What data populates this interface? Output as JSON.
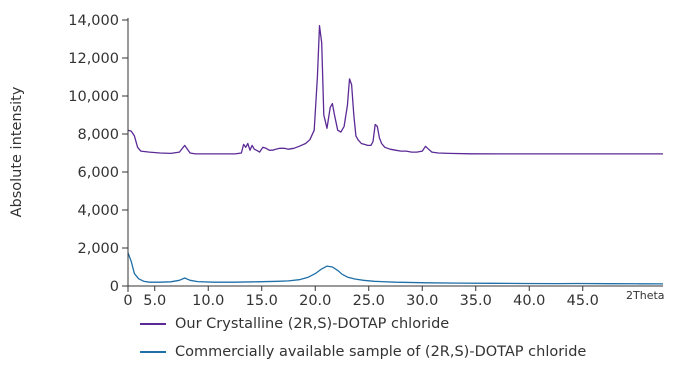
{
  "chart_data": {
    "type": "line",
    "ylabel": "Absolute intensity",
    "xunit": "2Theta",
    "xlim": [
      0,
      50
    ],
    "ylim": [
      0,
      14000
    ],
    "x_ticks": [
      {
        "value": 0,
        "label": "0"
      },
      {
        "value": 2.5,
        "label": "5.0"
      },
      {
        "value": 7.5,
        "label": "10.0"
      },
      {
        "value": 12.5,
        "label": "15.0"
      },
      {
        "value": 17.5,
        "label": "20.0"
      },
      {
        "value": 22.5,
        "label": "25.0"
      },
      {
        "value": 27.5,
        "label": "30.0"
      },
      {
        "value": 32.5,
        "label": "35.0"
      },
      {
        "value": 37.5,
        "label": "40.0"
      },
      {
        "value": 42.5,
        "label": "45.0"
      }
    ],
    "y_ticks": [
      {
        "value": 0,
        "label": "0"
      },
      {
        "value": 2000,
        "label": "2,000"
      },
      {
        "value": 4000,
        "label": "4,000"
      },
      {
        "value": 6000,
        "label": "6,000"
      },
      {
        "value": 8000,
        "label": "8,000"
      },
      {
        "value": 10000,
        "label": "10,000"
      },
      {
        "value": 12000,
        "label": "12,000"
      },
      {
        "value": 14000,
        "label": "14,000"
      }
    ],
    "grid": false,
    "legend_position": "bottom",
    "series": [
      {
        "name": "Our Crystalline (2R,S)-DOTAP chloride",
        "color": "#5b2a96",
        "x": [
          0,
          0.3,
          0.6,
          0.9,
          1.2,
          2,
          3,
          4,
          4.8,
          5.3,
          5.8,
          6.3,
          7,
          8,
          9,
          10,
          10.6,
          10.8,
          11,
          11.2,
          11.4,
          11.6,
          11.8,
          12,
          12.3,
          12.6,
          12.9,
          13.2,
          13.5,
          13.8,
          14.2,
          14.6,
          15,
          15.5,
          16,
          16.6,
          17,
          17.4,
          17.7,
          17.9,
          18.1,
          18.3,
          18.6,
          18.9,
          19.1,
          19.3,
          19.6,
          19.9,
          20.2,
          20.5,
          20.7,
          20.9,
          21.1,
          21.3,
          21.5,
          21.8,
          22.1,
          22.4,
          22.7,
          22.9,
          23.1,
          23.3,
          23.5,
          23.7,
          24,
          24.5,
          25,
          25.5,
          26,
          26.5,
          27,
          27.5,
          27.8,
          28,
          28.4,
          29,
          30,
          32,
          35,
          38,
          41,
          44,
          47,
          50
        ],
        "y": [
          8200,
          8150,
          7900,
          7300,
          7100,
          7050,
          7000,
          6980,
          7050,
          7400,
          7000,
          6950,
          6950,
          6950,
          6950,
          6950,
          7000,
          7450,
          7300,
          7500,
          7150,
          7400,
          7200,
          7150,
          7050,
          7300,
          7250,
          7150,
          7150,
          7200,
          7250,
          7250,
          7200,
          7250,
          7350,
          7500,
          7700,
          8200,
          11000,
          13700,
          12800,
          9000,
          8300,
          9400,
          9600,
          9000,
          8200,
          8100,
          8400,
          9500,
          10900,
          10600,
          9000,
          7900,
          7700,
          7500,
          7450,
          7400,
          7400,
          7600,
          8500,
          8400,
          7800,
          7500,
          7300,
          7200,
          7150,
          7100,
          7100,
          7050,
          7050,
          7100,
          7350,
          7250,
          7050,
          7000,
          6980,
          6960,
          6950,
          6950,
          6950,
          6950,
          6950,
          6950
        ]
      },
      {
        "name": "Commercially available sample of (2R,S)-DOTAP chloride",
        "color": "#1f6fa8",
        "x": [
          0,
          0.3,
          0.6,
          1,
          1.5,
          2,
          3,
          4,
          4.8,
          5.3,
          5.8,
          6.5,
          8,
          10,
          12,
          14,
          15,
          16,
          16.8,
          17.5,
          18.1,
          18.6,
          19.1,
          19.6,
          20,
          20.5,
          21.2,
          22,
          23,
          25,
          28,
          31,
          34,
          37,
          40,
          42,
          45,
          48,
          50
        ],
        "y": [
          1750,
          1300,
          650,
          380,
          240,
          200,
          200,
          220,
          300,
          420,
          300,
          230,
          200,
          200,
          220,
          250,
          270,
          330,
          450,
          650,
          900,
          1050,
          1000,
          820,
          620,
          470,
          370,
          300,
          250,
          200,
          170,
          150,
          140,
          130,
          125,
          130,
          120,
          115,
          110
        ]
      }
    ]
  }
}
